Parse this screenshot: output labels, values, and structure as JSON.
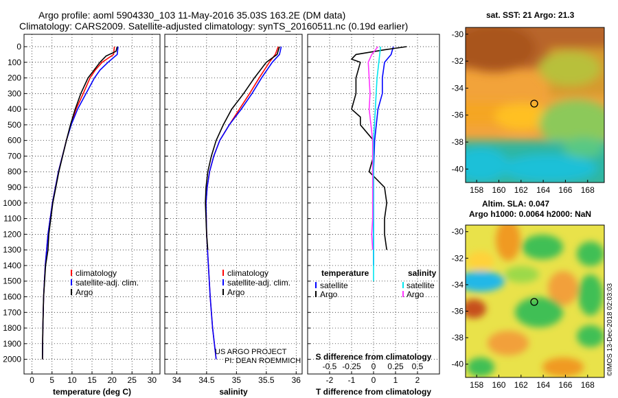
{
  "header": {
    "line1": "Argo profile: aoml 5904330_103 11-May-2016 35.03S 163.2E (DM data)",
    "line2": "Climatology: CARS2009. Satellite-adjusted climatology: synTS_20160511.nc (0.19d earlier)"
  },
  "colors": {
    "climatology": "#ff0000",
    "satellite": "#0000ff",
    "argo": "#000000",
    "s_satellite": "#00e5ee",
    "s_argo": "#ff33ff"
  },
  "credit": {
    "project": "US ARGO PROJECT",
    "pi": "PI: DEAN ROEMMICH",
    "imos": "©IMOS 13-Dec-2018 02:03:03"
  },
  "maps": {
    "sst": {
      "title": "sat. SST: 21 Argo: 21.3",
      "yticks": [
        "-30",
        "-32",
        "-34",
        "-36",
        "-38",
        "-40"
      ],
      "xticks": [
        "158",
        "160",
        "162",
        "164",
        "166",
        "168"
      ]
    },
    "sla": {
      "title1": "Altim. SLA: 0.047",
      "title2": "Argo h1000: 0.0064 h2000: NaN",
      "yticks": [
        "-30",
        "-32",
        "-34",
        "-36",
        "-38",
        "-40"
      ],
      "xticks": [
        "158",
        "160",
        "162",
        "164",
        "166",
        "168"
      ]
    }
  },
  "chart_data": [
    {
      "type": "line",
      "xlabel": "temperature (deg C)",
      "ylabel": "",
      "xlim": [
        -2,
        32
      ],
      "ylim": [
        2050,
        0
      ],
      "xticks": [
        "0",
        "5",
        "10",
        "15",
        "20",
        "25",
        "30"
      ],
      "yticks": [
        "0",
        "100",
        "200",
        "300",
        "400",
        "500",
        "600",
        "700",
        "800",
        "900",
        "1000",
        "1100",
        "1200",
        "1300",
        "1400",
        "1500",
        "1600",
        "1700",
        "1800",
        "1900",
        "2000"
      ],
      "legend": [
        "climatology",
        "satellite-adj. clim.",
        "Argo"
      ],
      "series": [
        {
          "name": "climatology",
          "depth": [
            0,
            50,
            100,
            150,
            200,
            300,
            400,
            500,
            600,
            800,
            1000,
            1200,
            1400,
            1600,
            1800,
            2000
          ],
          "values": [
            20.6,
            20.4,
            17.5,
            15.8,
            14.5,
            12.8,
            11.0,
            9.7,
            8.6,
            6.6,
            5.1,
            4.0,
            3.3,
            2.9,
            2.7,
            2.6
          ]
        },
        {
          "name": "satellite-adj. clim.",
          "depth": [
            0,
            50,
            100,
            150,
            200,
            300,
            400,
            500,
            600,
            800,
            1000,
            1200,
            1400,
            1600,
            1800,
            2000
          ],
          "values": [
            21.5,
            21.3,
            19.0,
            17.0,
            15.6,
            13.5,
            11.4,
            9.8,
            8.6,
            6.6,
            5.1,
            4.0,
            3.3,
            2.9,
            2.7,
            2.6
          ]
        },
        {
          "name": "Argo",
          "depth": [
            0,
            30,
            60,
            100,
            150,
            200,
            300,
            400,
            500,
            600,
            800,
            1000,
            1200,
            1300,
            1400,
            1600,
            1800,
            2000
          ],
          "values": [
            21.3,
            21.0,
            18.5,
            17.0,
            15.5,
            14.0,
            12.2,
            10.8,
            9.6,
            8.6,
            6.7,
            5.2,
            4.2,
            4.0,
            3.4,
            2.9,
            2.7,
            2.6
          ]
        }
      ]
    },
    {
      "type": "line",
      "xlabel": "salinity",
      "ylabel": "",
      "xlim": [
        33.8,
        36.1
      ],
      "ylim": [
        2050,
        0
      ],
      "xticks": [
        "34",
        "34.5",
        "35",
        "35.5",
        "36"
      ],
      "legend": [
        "climatology",
        "satellite-adj. clim.",
        "Argo"
      ],
      "series": [
        {
          "name": "climatology",
          "depth": [
            0,
            50,
            100,
            200,
            300,
            400,
            500,
            600,
            700,
            800,
            900,
            1000,
            1200,
            1400,
            1600,
            1800,
            2000
          ],
          "values": [
            35.7,
            35.65,
            35.55,
            35.38,
            35.22,
            35.05,
            34.88,
            34.72,
            34.62,
            34.55,
            34.51,
            34.49,
            34.5,
            34.53,
            34.56,
            34.6,
            34.66
          ]
        },
        {
          "name": "satellite-adj. clim.",
          "depth": [
            0,
            50,
            100,
            200,
            300,
            400,
            500,
            600,
            700,
            800,
            900,
            1000,
            1200,
            1400,
            1600,
            1800,
            2000
          ],
          "values": [
            35.75,
            35.72,
            35.6,
            35.42,
            35.26,
            35.08,
            34.88,
            34.72,
            34.62,
            34.55,
            34.51,
            34.49,
            34.5,
            34.53,
            34.56,
            34.6,
            34.66
          ]
        },
        {
          "name": "Argo",
          "depth": [
            0,
            50,
            100,
            200,
            300,
            400,
            500,
            600,
            700,
            800,
            900,
            1000,
            1100,
            1200,
            1300
          ],
          "values": [
            35.72,
            35.68,
            35.5,
            35.3,
            35.12,
            34.92,
            34.78,
            34.66,
            34.58,
            34.52,
            34.49,
            34.48,
            34.49,
            34.5,
            34.52
          ]
        }
      ]
    },
    {
      "type": "line",
      "xlabel": "T difference from climatology",
      "xlabel2": "S difference from climatology",
      "ylabel": "",
      "xlim": [
        -3,
        3
      ],
      "ylim": [
        2050,
        0
      ],
      "xticks": [
        "-2",
        "-1",
        "0",
        "1",
        "2"
      ],
      "xticks2": [
        "-0.5",
        "-0.25",
        "0",
        "0.25",
        "0.5"
      ],
      "legend_t_title": "temperature",
      "legend_s_title": "salinity",
      "legend_t": [
        "satellite",
        "Argo"
      ],
      "legend_s": [
        "satellite",
        "Argo"
      ],
      "series": [
        {
          "name": "T satellite",
          "depth": [
            0,
            50,
            100,
            200,
            300,
            400,
            600,
            800,
            1000,
            1200,
            1400
          ],
          "values": [
            0.9,
            0.8,
            0.5,
            0.4,
            0.4,
            0.2,
            0.05,
            0.0,
            0.0,
            0.0,
            0.0
          ]
        },
        {
          "name": "T Argo",
          "depth": [
            0,
            20,
            50,
            80,
            100,
            200,
            300,
            400,
            450,
            500,
            600,
            700,
            800,
            900,
            1000,
            1100,
            1200,
            1300
          ],
          "values": [
            1.5,
            0.5,
            -0.8,
            -1.0,
            -0.6,
            -0.8,
            -0.8,
            -1.0,
            -0.6,
            -0.6,
            0.0,
            0.0,
            -0.2,
            0.5,
            0.6,
            0.5,
            0.5,
            0.6
          ]
        },
        {
          "name": "S satellite",
          "depth": [
            0,
            100,
            200,
            300,
            400,
            500,
            600,
            800,
            1000,
            1200,
            1400,
            1500
          ],
          "values": [
            0.08,
            0.06,
            0.04,
            0.03,
            0.02,
            0.01,
            0.0,
            0.0,
            0.0,
            0.0,
            0.0,
            0.0
          ]
        },
        {
          "name": "S Argo",
          "depth": [
            0,
            50,
            100,
            200,
            300,
            400,
            500,
            600,
            700,
            800,
            900,
            1000,
            1100,
            1200,
            1300
          ],
          "values": [
            0.05,
            -0.02,
            -0.06,
            -0.05,
            -0.04,
            -0.05,
            -0.03,
            -0.01,
            -0.01,
            -0.01,
            -0.01,
            -0.01,
            -0.01,
            -0.02,
            -0.01
          ]
        }
      ]
    }
  ]
}
